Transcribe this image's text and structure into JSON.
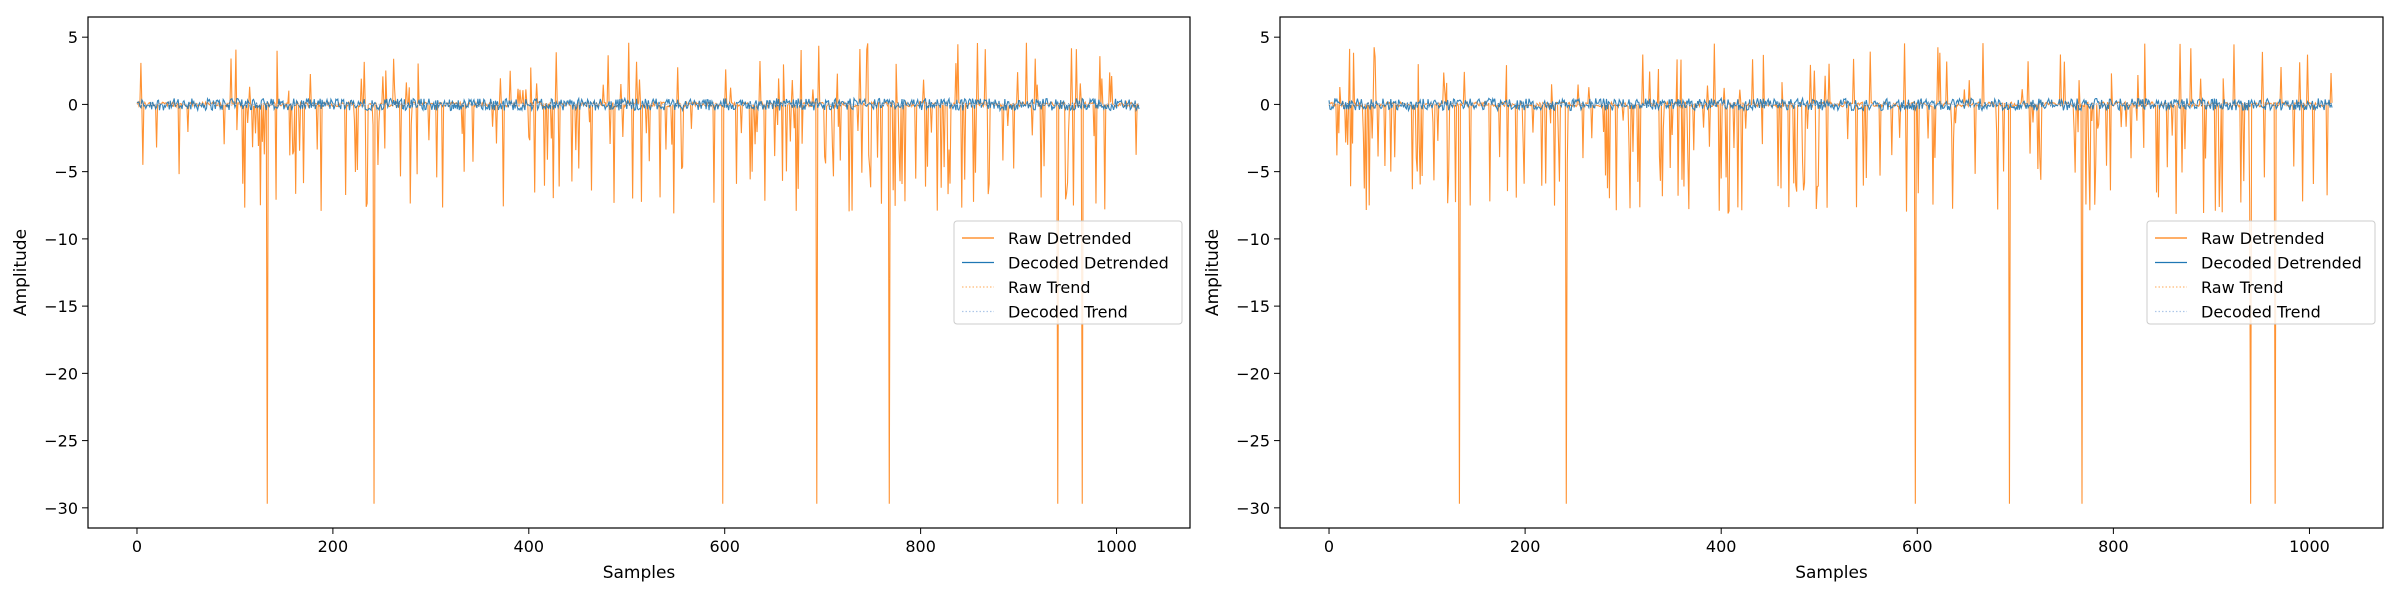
{
  "colors": {
    "raw_detrended": "#ff7f0e",
    "decoded_detrended": "#1f77b4",
    "raw_trend": "#ffbb78",
    "decoded_trend": "#aec7e8"
  },
  "chart_data": [
    {
      "type": "line",
      "title": "",
      "xlabel": "Samples",
      "ylabel": "Amplitude",
      "xlim": [
        -50,
        1075
      ],
      "ylim": [
        -31.5,
        6.5
      ],
      "xticks": [
        0,
        200,
        400,
        600,
        800,
        1000
      ],
      "yticks": [
        5,
        0,
        -5,
        -10,
        -15,
        -20,
        -25,
        -30
      ],
      "grid": false,
      "legend_position": "center-right",
      "n_samples": 1024,
      "spikes_to_minimum": [
        133,
        242,
        598,
        694,
        768,
        940,
        965
      ],
      "series": [
        {
          "name": "Raw Detrended",
          "style": "solid",
          "color_key": "raw_detrended",
          "range": [
            -29.7,
            4.6
          ]
        },
        {
          "name": "Decoded Detrended",
          "style": "solid",
          "color_key": "decoded_detrended",
          "range": [
            -1.2,
            0.9
          ]
        },
        {
          "name": "Raw Trend",
          "style": "dotted",
          "color_key": "raw_trend",
          "range": [
            0,
            0
          ]
        },
        {
          "name": "Decoded Trend",
          "style": "dotted",
          "color_key": "decoded_trend",
          "range": [
            0,
            0
          ]
        }
      ]
    },
    {
      "type": "line",
      "title": "",
      "xlabel": "Samples",
      "ylabel": "Amplitude",
      "xlim": [
        -50,
        1075
      ],
      "ylim": [
        -31.5,
        6.5
      ],
      "xticks": [
        0,
        200,
        400,
        600,
        800,
        1000
      ],
      "yticks": [
        5,
        0,
        -5,
        -10,
        -15,
        -20,
        -25,
        -30
      ],
      "grid": false,
      "legend_position": "center-right",
      "n_samples": 1024,
      "spikes_to_minimum": [
        133,
        242,
        598,
        694,
        768,
        940,
        965
      ],
      "series": [
        {
          "name": "Raw Detrended",
          "style": "solid",
          "color_key": "raw_detrended",
          "range": [
            -29.7,
            4.6
          ]
        },
        {
          "name": "Decoded Detrended",
          "style": "solid",
          "color_key": "decoded_detrended",
          "range": [
            -1.2,
            0.9
          ]
        },
        {
          "name": "Raw Trend",
          "style": "dotted",
          "color_key": "raw_trend",
          "range": [
            0,
            0
          ]
        },
        {
          "name": "Decoded Trend",
          "style": "dotted",
          "color_key": "decoded_trend",
          "range": [
            0,
            0
          ]
        }
      ]
    }
  ]
}
